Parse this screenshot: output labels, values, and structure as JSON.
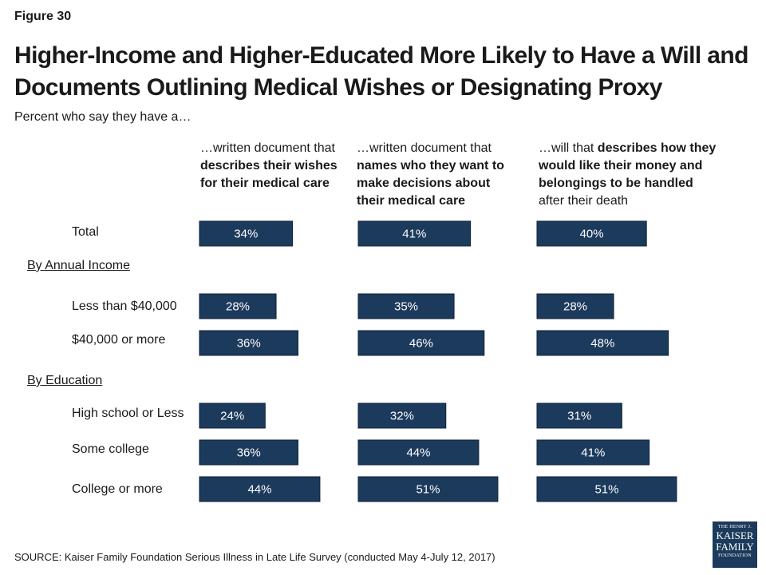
{
  "figure_label": "Figure 30",
  "title": "Higher-Income and Higher-Educated More Likely to Have a Will and Documents Outlining Medical Wishes or Designating Proxy",
  "subtitle": "Percent who say they have a…",
  "source": "SOURCE: Kaiser Family Foundation Serious Illness in Late Life Survey (conducted May 4-July 12, 2017)",
  "logo": {
    "line1": "THE HENRY J.",
    "line2": "KAISER",
    "line3": "FAMILY",
    "line4": "FOUNDATION"
  },
  "colors": {
    "bar": "#1c3a5c",
    "bar_text": "#ffffff"
  },
  "columns": [
    {
      "segments": [
        {
          "t": "…written document that ",
          "b": false
        },
        {
          "t": "describes their wishes for their medical care",
          "b": true
        }
      ]
    },
    {
      "segments": [
        {
          "t": "…written document that ",
          "b": false
        },
        {
          "t": "names who they want to make decisions about their medical care",
          "b": true
        }
      ]
    },
    {
      "segments": [
        {
          "t": "…will that ",
          "b": false
        },
        {
          "t": "describes how they would like their money and belongings to be handled",
          "b": true
        },
        {
          "t": " after their death",
          "b": false
        }
      ]
    }
  ],
  "groups": {
    "income": "By Annual Income",
    "education": "By Education"
  },
  "rows": [
    "Total",
    "Less than $40,000",
    "$40,000 or more",
    "High school or Less",
    "Some college",
    "College or more"
  ],
  "chart_data": {
    "type": "bar",
    "categories": [
      "Total",
      "Less than $40,000",
      "$40,000 or more",
      "High school or Less",
      "Some college",
      "College or more"
    ],
    "series": [
      {
        "values": [
          34,
          28,
          36,
          24,
          36,
          44
        ]
      },
      {
        "values": [
          41,
          35,
          46,
          32,
          44,
          51
        ]
      },
      {
        "values": [
          40,
          28,
          48,
          31,
          41,
          51
        ]
      }
    ],
    "value_suffix": "%"
  }
}
